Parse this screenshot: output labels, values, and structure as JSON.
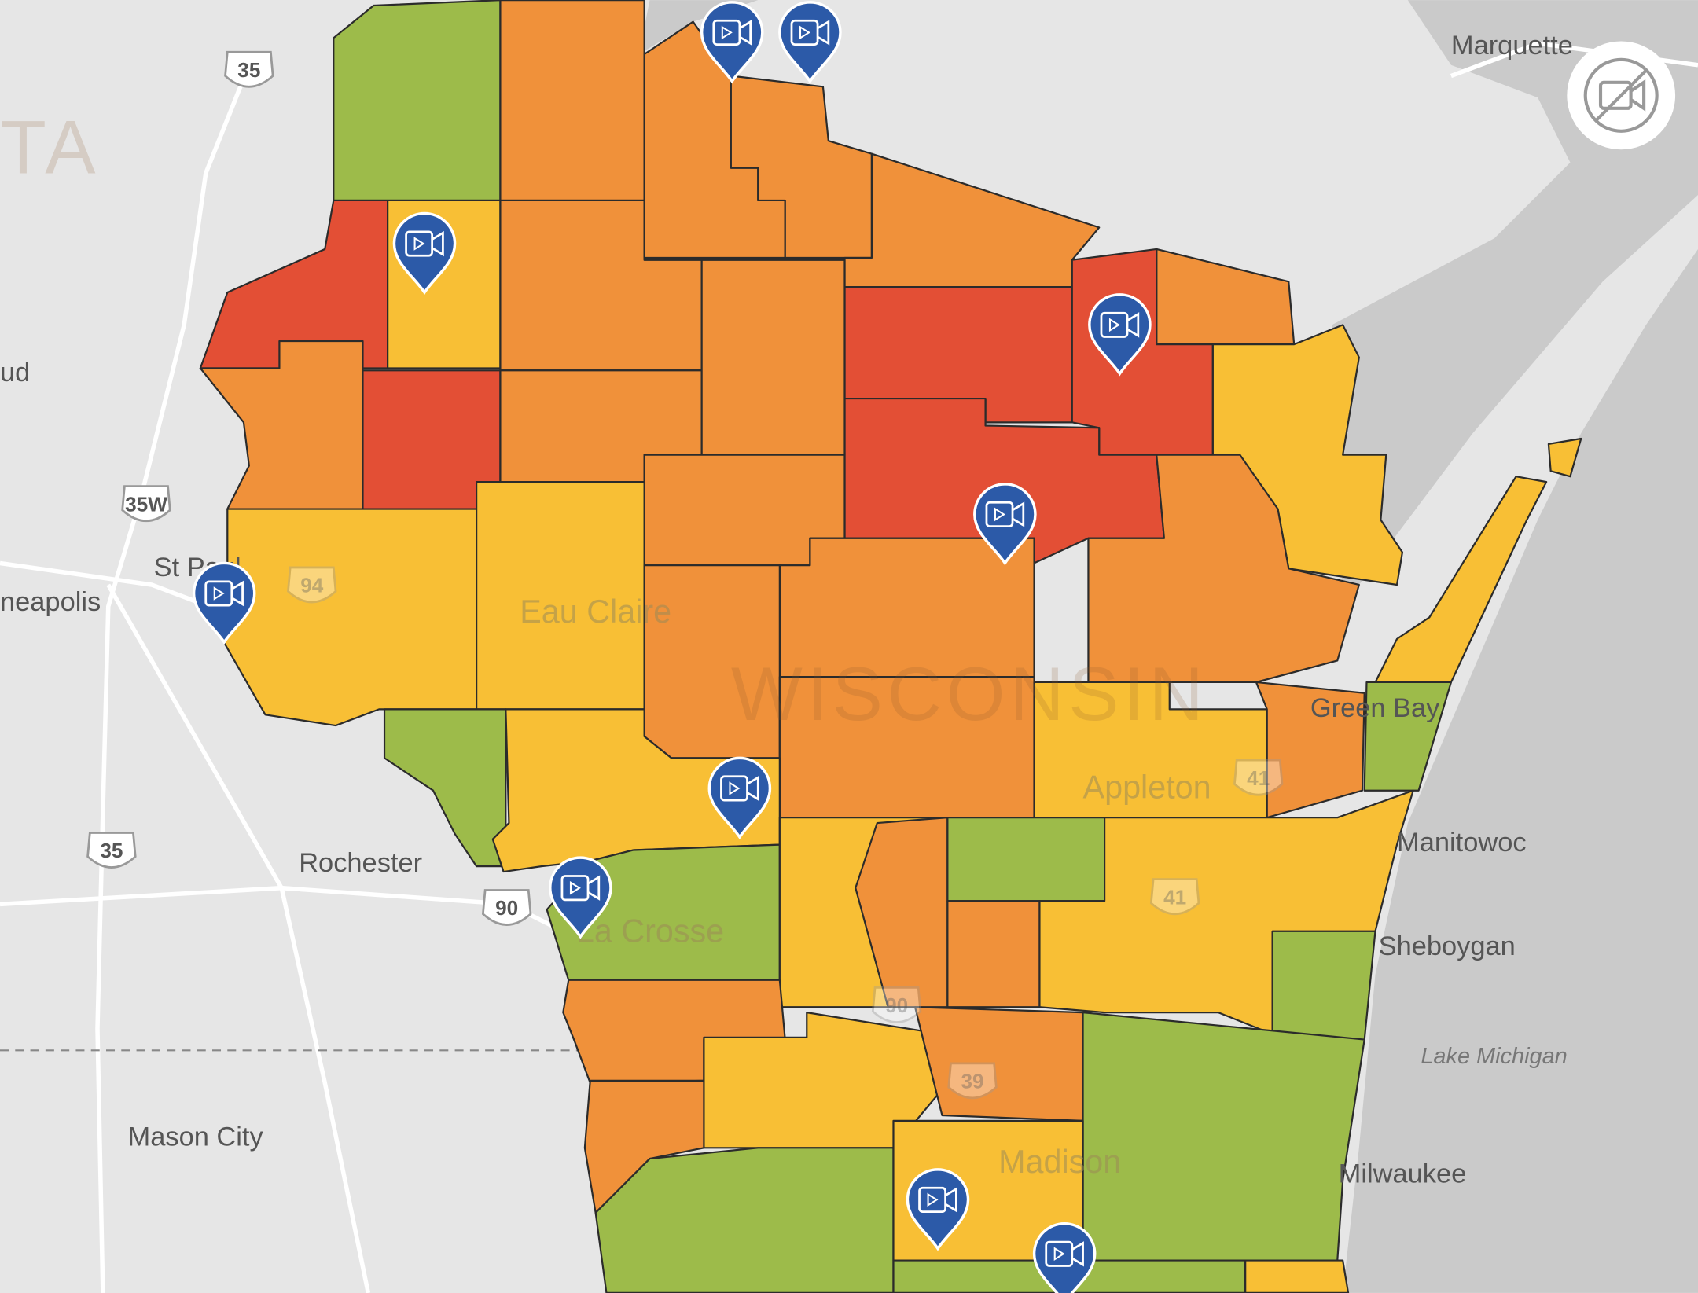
{
  "map": {
    "places": [
      {
        "label": "Marquette"
      },
      {
        "label": "ud"
      },
      {
        "label": "St Paul"
      },
      {
        "label": "neapolis"
      },
      {
        "label": "Rochester"
      },
      {
        "label": "Mason City"
      },
      {
        "label": "Eau Claire"
      },
      {
        "label": "WISCONSIN"
      },
      {
        "label": "Green Bay"
      },
      {
        "label": "Appleton"
      },
      {
        "label": "Manitowoc"
      },
      {
        "label": "Sheboygan"
      },
      {
        "label": "Lake Michigan"
      },
      {
        "label": "Madison"
      },
      {
        "label": "Milwaukee"
      },
      {
        "label": "La Crosse"
      },
      {
        "label": "TA"
      }
    ],
    "highways": [
      "35",
      "35W",
      "35",
      "94",
      "90",
      "41",
      "41",
      "39",
      "90"
    ]
  }
}
